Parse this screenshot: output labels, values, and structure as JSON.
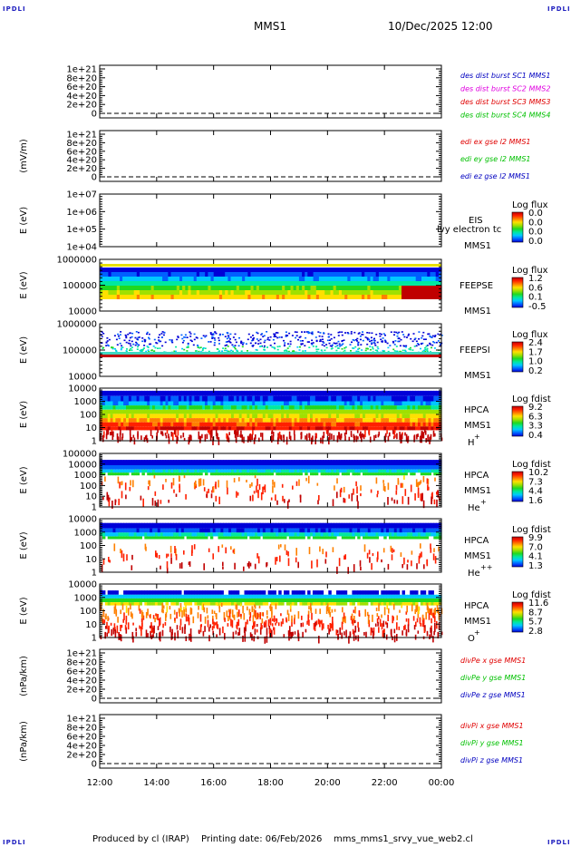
{
  "page": {
    "corner_label": "IPDLI",
    "mission": "MMS1",
    "datetime": "10/Dec/2025 12:00",
    "footer_produced": "Produced by cl (IRAP)",
    "footer_printing": "Printing date: 06/Feb/2026",
    "footer_file": "mms_mms1_srvy_vue_web2.cl"
  },
  "colors": {
    "red": "#e00000",
    "magenta": "#e000e0",
    "green": "#00c000",
    "blue": "#0000c0",
    "cbar_stops": [
      "#0000d8",
      "#0060ff",
      "#00c8ff",
      "#00e8a0",
      "#20d820",
      "#a0e000",
      "#ffe000",
      "#ff8000",
      "#ff2000",
      "#c00000"
    ]
  },
  "chart_data": [
    {
      "id": "des-dist",
      "type": "line",
      "ylabel": "",
      "yticks": [
        "1e+21",
        "8e+20",
        "6e+20",
        "4e+20",
        "2e+20",
        "0"
      ],
      "legend": [
        {
          "label": "des dist burst SC1 MMS1",
          "color": "#0000c0"
        },
        {
          "label": "des dist burst SC2 MMS2",
          "color": "#e000e0"
        },
        {
          "label": "des dist burst SC3 MMS3",
          "color": "#e00000"
        },
        {
          "label": "des dist burst SC4 MMS4",
          "color": "#00c000"
        }
      ]
    },
    {
      "id": "edi",
      "type": "line",
      "ylabel": "(mV/m)",
      "yticks": [
        "1e+21",
        "8e+20",
        "6e+20",
        "4e+20",
        "2e+20",
        "0"
      ],
      "legend": [
        {
          "label": "edi ex gse l2 MMS1",
          "color": "#e00000"
        },
        {
          "label": "edi ey gse l2 MMS1",
          "color": "#00c000"
        },
        {
          "label": "edi ez gse l2 MMS1",
          "color": "#0000c0"
        }
      ]
    },
    {
      "id": "eis",
      "type": "heatmap",
      "ylabel": "E (eV)",
      "yticks": [
        "1e+07",
        "1e+06",
        "1e+05",
        "1e+04"
      ],
      "instrument": "EIS",
      "overlay": "lvy electron tc",
      "sc": "MMS1",
      "cbar_label": "Log flux",
      "cbar_values": [
        "0.0",
        "0.0",
        "0.0",
        "0.0"
      ]
    },
    {
      "id": "feepse",
      "type": "heatmap",
      "ylabel": "E (eV)",
      "yticks": [
        "1000000",
        "100000",
        "10000"
      ],
      "instrument": "FEEPSE",
      "sc": "MMS1",
      "cbar_label": "Log flux",
      "cbar_values": [
        "1.2",
        "0.6",
        "0.1",
        "-0.5"
      ]
    },
    {
      "id": "feepsi",
      "type": "heatmap",
      "ylabel": "E (eV)",
      "yticks": [
        "1000000",
        "100000",
        "10000"
      ],
      "instrument": "FEEPSI",
      "sc": "MMS1",
      "cbar_label": "Log flux",
      "cbar_values": [
        "2.4",
        "1.7",
        "1.0",
        "0.2"
      ]
    },
    {
      "id": "hpca-h",
      "type": "heatmap",
      "ylabel": "E (eV)",
      "yticks": [
        "10000",
        "1000",
        "100",
        "10",
        "1"
      ],
      "instrument": "HPCA",
      "sc": "MMS1",
      "species": "H",
      "charge": "+",
      "cbar_label": "Log fdist",
      "cbar_values": [
        "9.2",
        "6.3",
        "3.3",
        "0.4"
      ]
    },
    {
      "id": "hpca-he",
      "type": "heatmap",
      "ylabel": "E (eV)",
      "yticks": [
        "100000",
        "10000",
        "1000",
        "100",
        "10",
        "1"
      ],
      "instrument": "HPCA",
      "sc": "MMS1",
      "species": "He",
      "charge": "+",
      "cbar_label": "Log fdist",
      "cbar_values": [
        "10.2",
        "7.3",
        "4.4",
        "1.6"
      ]
    },
    {
      "id": "hpca-hepp",
      "type": "heatmap",
      "ylabel": "E (eV)",
      "yticks": [
        "10000",
        "1000",
        "100",
        "10",
        "1"
      ],
      "instrument": "HPCA",
      "sc": "MMS1",
      "species": "He",
      "charge": "++",
      "cbar_label": "Log fdist",
      "cbar_values": [
        "9.9",
        "7.0",
        "4.1",
        "1.3"
      ]
    },
    {
      "id": "hpca-o",
      "type": "heatmap",
      "ylabel": "E (eV)",
      "yticks": [
        "10000",
        "1000",
        "100",
        "10",
        "1"
      ],
      "instrument": "HPCA",
      "sc": "MMS1",
      "species": "O",
      "charge": "+",
      "cbar_label": "Log fdist",
      "cbar_values": [
        "11.6",
        "8.7",
        "5.7",
        "2.8"
      ]
    },
    {
      "id": "divpe",
      "type": "line",
      "ylabel": "(nPa/km)",
      "yticks": [
        "1e+21",
        "8e+20",
        "6e+20",
        "4e+20",
        "2e+20",
        "0"
      ],
      "legend": [
        {
          "label": "divPe x gse MMS1",
          "color": "#e00000"
        },
        {
          "label": "divPe y gse MMS1",
          "color": "#00c000"
        },
        {
          "label": "divPe z gse MMS1",
          "color": "#0000c0"
        }
      ]
    },
    {
      "id": "divpi",
      "type": "line",
      "ylabel": "(nPa/km)",
      "yticks": [
        "1e+21",
        "8e+20",
        "6e+20",
        "4e+20",
        "2e+20",
        "0"
      ],
      "legend": [
        {
          "label": "divPi x gse MMS1",
          "color": "#e00000"
        },
        {
          "label": "divPi y gse MMS1",
          "color": "#00c000"
        },
        {
          "label": "divPi z gse MMS1",
          "color": "#0000c0"
        }
      ]
    }
  ],
  "xaxis": {
    "ticks": [
      "12:00",
      "14:00",
      "16:00",
      "18:00",
      "20:00",
      "22:00",
      "00:00"
    ]
  }
}
